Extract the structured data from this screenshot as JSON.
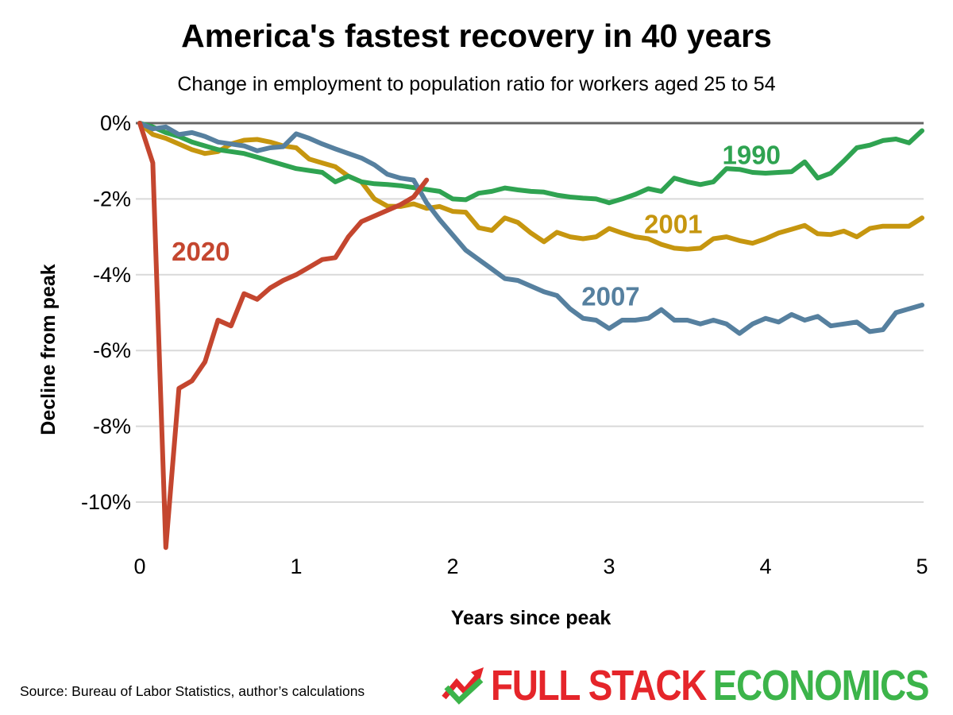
{
  "title": "America's fastest recovery in 40 years",
  "subtitle": "Change in employment to population ratio for workers aged 25 to 54",
  "source": "Source: Bureau of Labor Statistics, author’s calculations",
  "logo": {
    "part1": "FULL STACK",
    "part2": "ECONOMICS",
    "red_color": "#e5252a",
    "green_color": "#3cb44a"
  },
  "chart_data": {
    "type": "line",
    "title": "America's fastest recovery in 40 years",
    "subtitle": "Change in employment to population ratio for workers aged 25 to 54",
    "xlabel": "Years since peak",
    "ylabel": "Decline from peak",
    "x_unit": "years since peak; each series point is one month, x = index/12",
    "y_unit": "percent change from peak",
    "xlim": [
      0,
      5
    ],
    "ylim": [
      -11.5,
      0
    ],
    "x_ticks": [
      0,
      1,
      2,
      3,
      4,
      5
    ],
    "y_ticks": [
      0,
      -2,
      -4,
      -6,
      -8,
      -10
    ],
    "grid": "horizontal",
    "grid_color": "#d9d9d9",
    "zero_line_color": "#666666",
    "legend": "inline colored labels next to each line",
    "paint_order_note": "series listed bottom-to-top paint order",
    "series": [
      {
        "name": "2001",
        "color": "#c6960f",
        "label": {
          "x": 3.41,
          "y": -2.67
        },
        "values": [
          0,
          -0.3,
          -0.4,
          -0.55,
          -0.7,
          -0.8,
          -0.75,
          -0.55,
          -0.45,
          -0.43,
          -0.5,
          -0.6,
          -0.65,
          -0.95,
          -1.05,
          -1.15,
          -1.4,
          -1.55,
          -2.0,
          -2.19,
          -2.2,
          -2.13,
          -2.25,
          -2.2,
          -2.33,
          -2.35,
          -2.76,
          -2.83,
          -2.5,
          -2.62,
          -2.9,
          -3.13,
          -2.88,
          -3.0,
          -3.05,
          -3.0,
          -2.78,
          -2.9,
          -3.0,
          -3.05,
          -3.2,
          -3.3,
          -3.33,
          -3.3,
          -3.05,
          -3.0,
          -3.1,
          -3.17,
          -3.05,
          -2.9,
          -2.8,
          -2.7,
          -2.92,
          -2.94,
          -2.85,
          -3.0,
          -2.78,
          -2.72,
          -2.72,
          -2.72,
          -2.5
        ]
      },
      {
        "name": "1990",
        "color": "#2fa351",
        "label": {
          "x": 3.91,
          "y": -0.85
        },
        "values": [
          0,
          -0.1,
          -0.25,
          -0.35,
          -0.5,
          -0.6,
          -0.7,
          -0.75,
          -0.8,
          -0.9,
          -1.0,
          -1.1,
          -1.2,
          -1.25,
          -1.3,
          -1.55,
          -1.4,
          -1.55,
          -1.6,
          -1.62,
          -1.65,
          -1.7,
          -1.75,
          -1.8,
          -2.0,
          -2.02,
          -1.85,
          -1.8,
          -1.71,
          -1.76,
          -1.8,
          -1.82,
          -1.9,
          -1.95,
          -1.98,
          -2.0,
          -2.1,
          -2.0,
          -1.88,
          -1.73,
          -1.8,
          -1.45,
          -1.55,
          -1.62,
          -1.55,
          -1.2,
          -1.22,
          -1.3,
          -1.32,
          -1.3,
          -1.28,
          -1.02,
          -1.45,
          -1.32,
          -1.0,
          -0.65,
          -0.58,
          -0.46,
          -0.42,
          -0.52,
          -0.2
        ]
      },
      {
        "name": "2007",
        "color": "#56809f",
        "label": {
          "x": 3.01,
          "y": -4.58
        },
        "values": [
          0,
          -0.15,
          -0.1,
          -0.3,
          -0.25,
          -0.35,
          -0.5,
          -0.55,
          -0.6,
          -0.73,
          -0.65,
          -0.62,
          -0.28,
          -0.4,
          -0.55,
          -0.68,
          -0.8,
          -0.92,
          -1.1,
          -1.35,
          -1.45,
          -1.5,
          -2.1,
          -2.55,
          -2.95,
          -3.35,
          -3.6,
          -3.85,
          -4.1,
          -4.15,
          -4.3,
          -4.45,
          -4.55,
          -4.9,
          -5.15,
          -5.2,
          -5.42,
          -5.2,
          -5.2,
          -5.15,
          -4.92,
          -5.2,
          -5.2,
          -5.3,
          -5.2,
          -5.3,
          -5.55,
          -5.3,
          -5.15,
          -5.25,
          -5.05,
          -5.2,
          -5.1,
          -5.35,
          -5.3,
          -5.25,
          -5.5,
          -5.45,
          -5.0,
          -4.9,
          -4.8
        ]
      },
      {
        "name": "2020",
        "color": "#c4462f",
        "label": {
          "x": 0.39,
          "y": -3.4
        },
        "values": [
          0,
          -1.05,
          -11.2,
          -7.0,
          -6.8,
          -6.3,
          -5.2,
          -5.35,
          -4.5,
          -4.65,
          -4.35,
          -4.15,
          -4.0,
          -3.8,
          -3.6,
          -3.55,
          -3.0,
          -2.6,
          -2.45,
          -2.3,
          -2.15,
          -1.95,
          -1.5
        ]
      }
    ]
  }
}
